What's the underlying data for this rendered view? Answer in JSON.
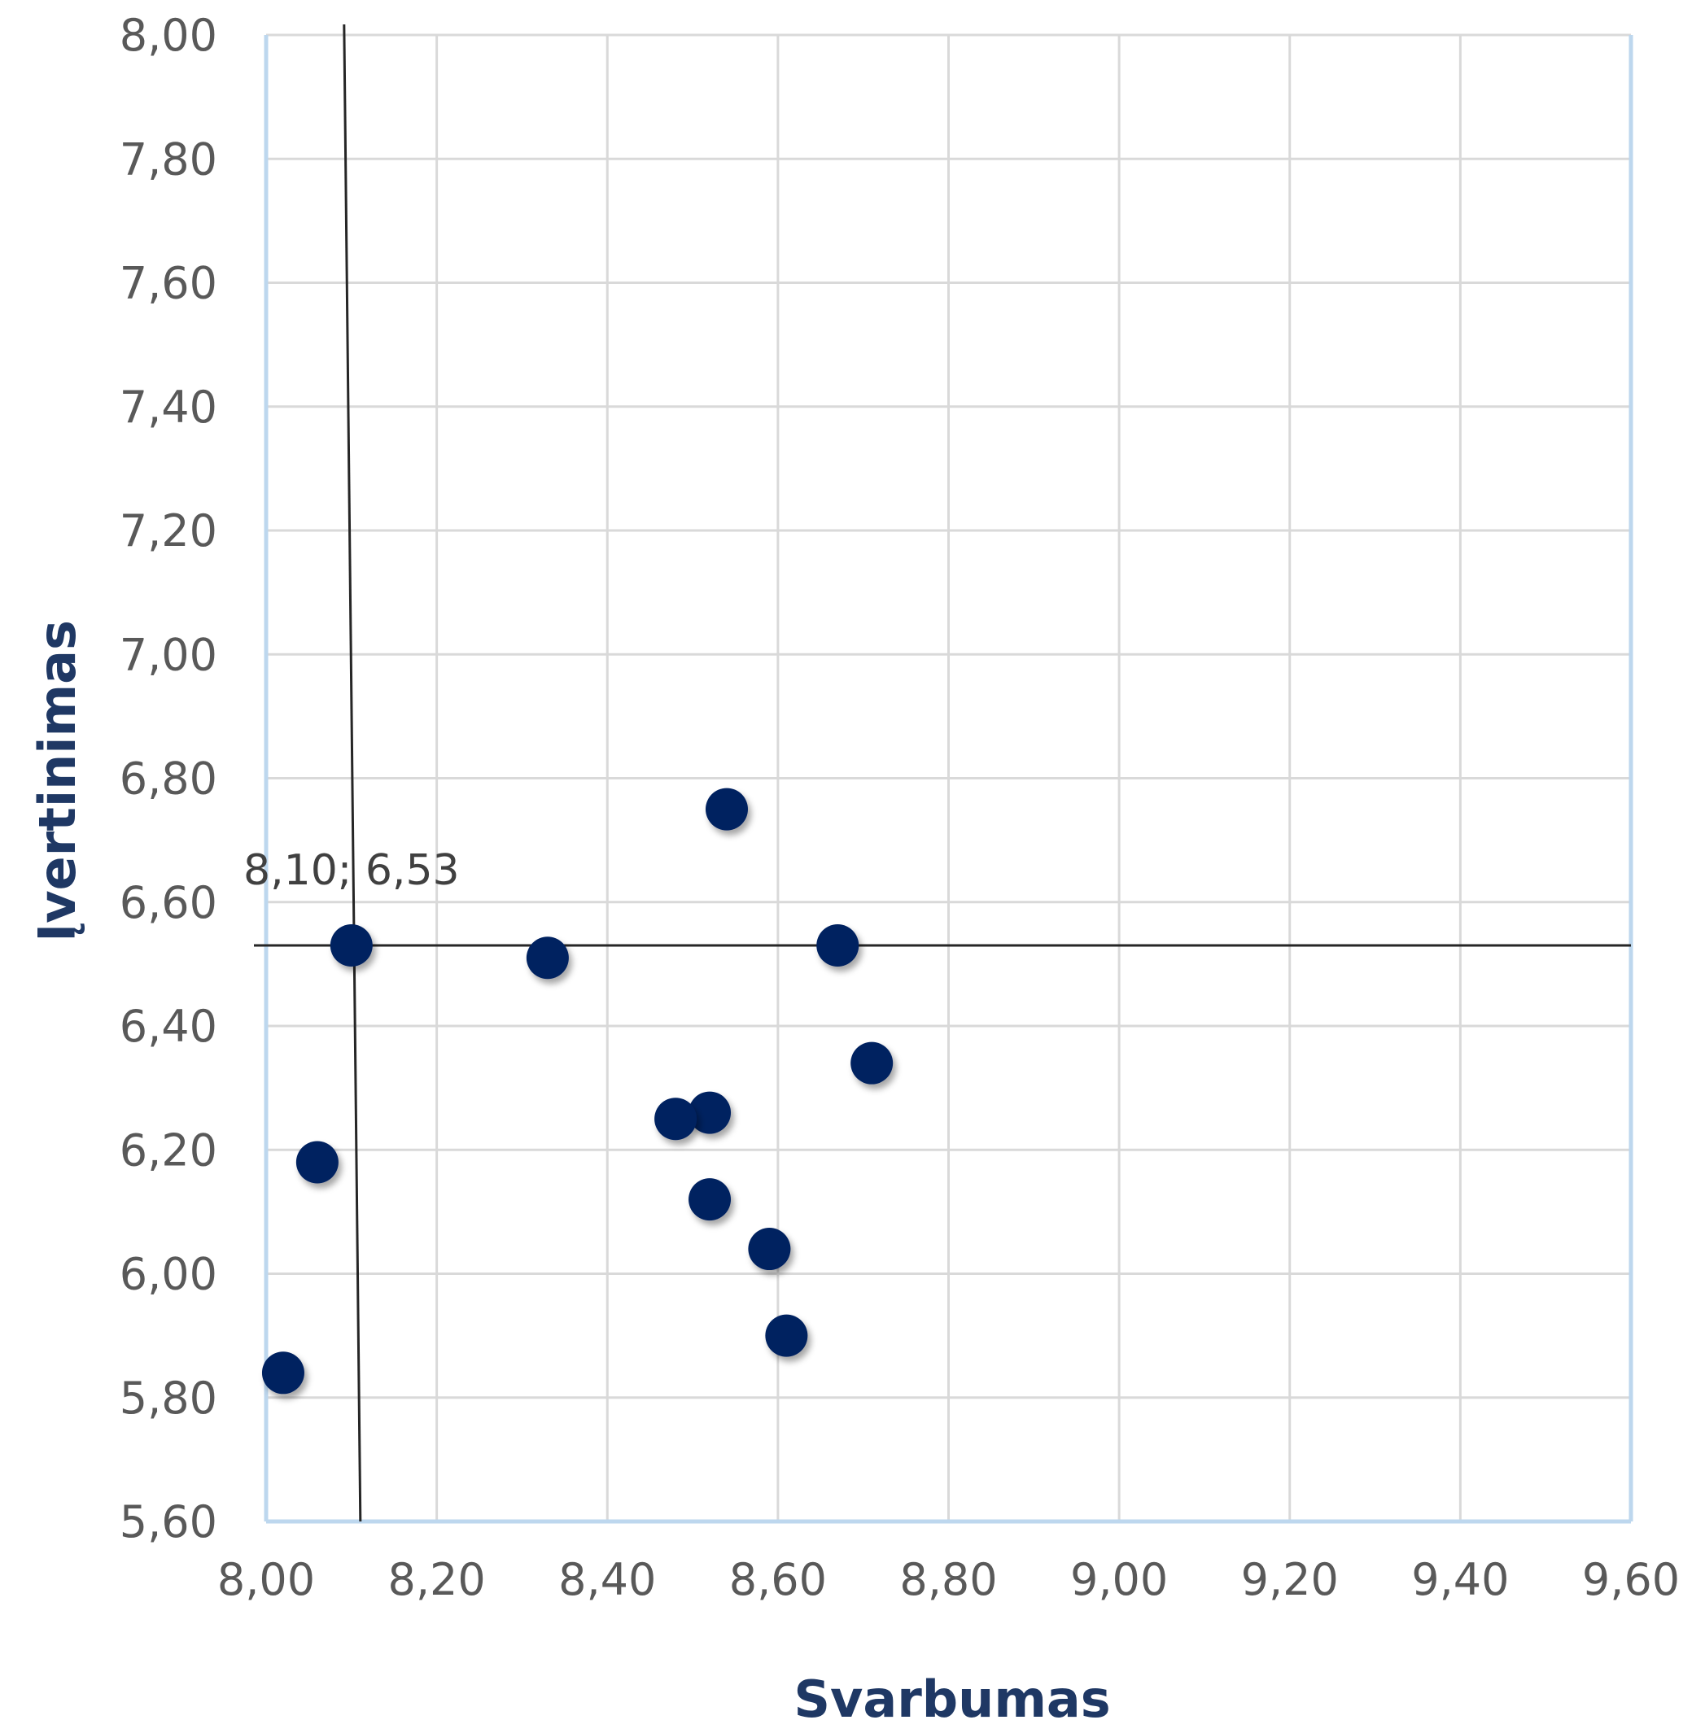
{
  "chart_data": {
    "type": "scatter",
    "xlabel": "Svarbumas",
    "ylabel": "Įvertinimas",
    "xlim": [
      8.0,
      9.6
    ],
    "ylim": [
      5.6,
      8.0
    ],
    "x_ticks": [
      "8,00",
      "8,20",
      "8,40",
      "8,60",
      "8,80",
      "9,00",
      "9,20",
      "9,40",
      "9,60"
    ],
    "y_ticks": [
      "5,60",
      "5,80",
      "6,00",
      "6,20",
      "6,40",
      "6,60",
      "6,80",
      "7,00",
      "7,20",
      "7,40",
      "7,60",
      "7,80",
      "8,00"
    ],
    "grid": true,
    "marker_color": "#002060",
    "axis_title_color": "#1f3864",
    "points": [
      {
        "x": 8.1,
        "y": 6.53
      },
      {
        "x": 8.33,
        "y": 6.51
      },
      {
        "x": 8.54,
        "y": 6.75
      },
      {
        "x": 8.67,
        "y": 6.53
      },
      {
        "x": 8.71,
        "y": 6.34
      },
      {
        "x": 8.52,
        "y": 6.26
      },
      {
        "x": 8.48,
        "y": 6.25
      },
      {
        "x": 8.06,
        "y": 6.18
      },
      {
        "x": 8.52,
        "y": 6.12
      },
      {
        "x": 8.59,
        "y": 6.04
      },
      {
        "x": 8.61,
        "y": 5.9
      },
      {
        "x": 8.02,
        "y": 5.84
      }
    ],
    "reference_lines": {
      "x": 8.1,
      "y": 6.53
    },
    "annotation": "8,10; 6,53"
  }
}
